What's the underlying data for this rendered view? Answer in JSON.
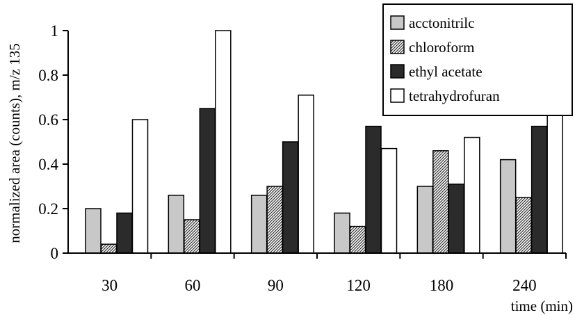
{
  "chart_data": {
    "type": "bar",
    "title": "",
    "xlabel": "time (min)",
    "ylabel": "normalized area (counts), m/z 135",
    "categories": [
      "30",
      "60",
      "90",
      "120",
      "180",
      "240"
    ],
    "yticks": [
      "0",
      "0.2",
      "0.4",
      "0.6",
      "0.8",
      "1"
    ],
    "ylim": [
      0,
      1
    ],
    "grid": false,
    "legend_position": "top-right",
    "series": [
      {
        "name": "acctonitrilc",
        "values": [
          0.2,
          0.26,
          0.26,
          0.18,
          0.3,
          0.42
        ],
        "fill": "#c8c8c8",
        "pattern": "solid"
      },
      {
        "name": "chloroform",
        "values": [
          0.04,
          0.15,
          0.3,
          0.12,
          0.46,
          0.25
        ],
        "fill": "#9a9a9a",
        "pattern": "hatch"
      },
      {
        "name": "ethyl acetate",
        "values": [
          0.18,
          0.65,
          0.5,
          0.57,
          0.31,
          0.57
        ],
        "fill": "#2b2b2b",
        "pattern": "solid"
      },
      {
        "name": "tetrahydrofuran",
        "values": [
          0.6,
          1.0,
          0.71,
          0.47,
          0.52,
          0.86
        ],
        "fill": "#ffffff",
        "pattern": "solid"
      }
    ]
  }
}
